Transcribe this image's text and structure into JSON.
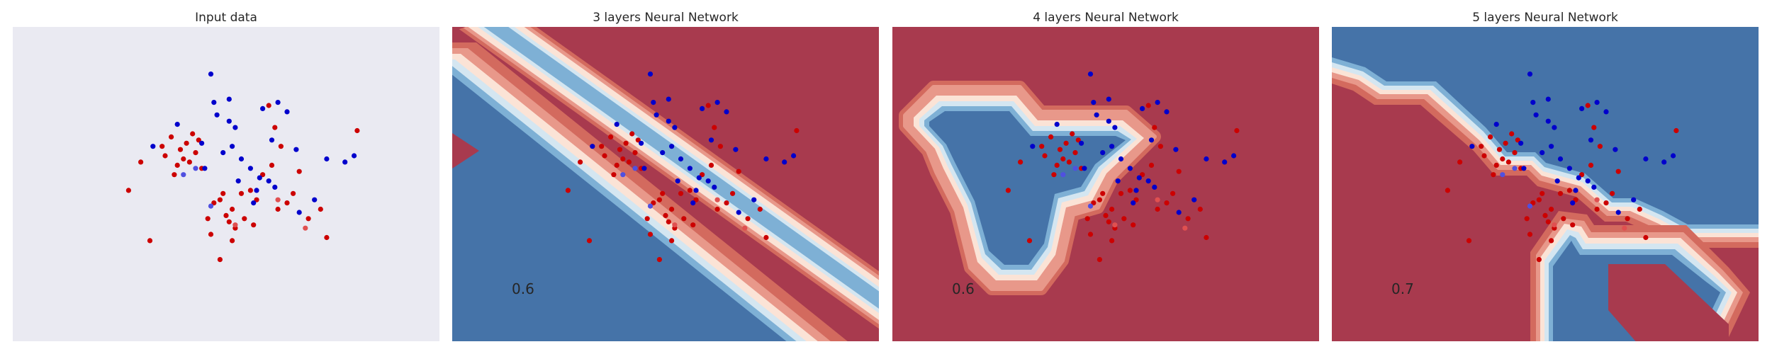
{
  "colors": {
    "page_background": "#ffffff",
    "input_panel_background": "#eaeaf2",
    "class0_point": "#cc0000",
    "class1_point": "#0000cc",
    "class0_light_point": "#e05050",
    "class1_light_point": "#5050e0",
    "class0_region": "#a83a4e",
    "class1_region": "#4573a8",
    "boundary_bands": [
      "#4573a8",
      "#7eb0d5",
      "#d4e6f1",
      "#fbe3d6",
      "#e8988a",
      "#d36a5e",
      "#a83a4e"
    ]
  },
  "chart_data": [
    {
      "type": "scatter",
      "title": "Input data",
      "score": "",
      "grid": false,
      "background": "plain",
      "series": [
        {
          "class": 0,
          "points": [
            [
              -2.1,
              1.2
            ],
            [
              -2.0,
              0.9
            ],
            [
              -1.8,
              1.5
            ],
            [
              -1.6,
              0.6
            ],
            [
              -1.5,
              1.1
            ],
            [
              -1.4,
              0.8
            ],
            [
              -1.3,
              1.3
            ],
            [
              -1.2,
              0.7
            ],
            [
              -1.1,
              1.6
            ],
            [
              -1.0,
              1.0
            ],
            [
              -0.9,
              1.4
            ],
            [
              -0.8,
              0.5
            ],
            [
              -1.7,
              0.3
            ],
            [
              -0.4,
              -0.6
            ],
            [
              -0.2,
              -0.5
            ],
            [
              0.0,
              -1.0
            ],
            [
              0.1,
              -1.2
            ],
            [
              0.2,
              -0.8
            ],
            [
              0.3,
              -1.4
            ],
            [
              0.5,
              -0.3
            ],
            [
              0.6,
              -1.1
            ],
            [
              0.8,
              -0.2
            ],
            [
              1.0,
              -0.5
            ],
            [
              1.2,
              0.3
            ],
            [
              1.5,
              0.6
            ],
            [
              1.6,
              1.8
            ],
            [
              1.7,
              -0.8
            ],
            [
              2.2,
              -0.3
            ],
            [
              2.4,
              0.4
            ],
            [
              2.7,
              -1.1
            ],
            [
              3.1,
              -0.8
            ],
            [
              3.3,
              -1.7
            ],
            [
              4.3,
              1.7
            ],
            [
              -0.5,
              -1.6
            ],
            [
              -0.2,
              -2.4
            ],
            [
              0.2,
              -1.8
            ],
            [
              -3.2,
              -0.2
            ],
            [
              -2.5,
              -1.8
            ],
            [
              -0.6,
              -1.1
            ],
            [
              0.9,
              -1.3
            ],
            [
              1.4,
              2.5
            ],
            [
              1.8,
              1.2
            ],
            [
              -2.8,
              0.7
            ],
            [
              2.0,
              -0.6
            ],
            [
              -0.1,
              -0.3
            ]
          ]
        },
        {
          "class": 1,
          "points": [
            [
              -0.5,
              3.5
            ],
            [
              -0.4,
              2.6
            ],
            [
              0.1,
              2.7
            ],
            [
              -0.3,
              2.2
            ],
            [
              1.2,
              2.4
            ],
            [
              0.3,
              1.8
            ],
            [
              0.2,
              1.2
            ],
            [
              -0.1,
              1.0
            ],
            [
              0.5,
              0.8
            ],
            [
              0.8,
              0.5
            ],
            [
              1.1,
              0.2
            ],
            [
              0.9,
              -0.6
            ],
            [
              1.4,
              0.1
            ],
            [
              1.5,
              1.4
            ],
            [
              2.0,
              2.3
            ],
            [
              2.3,
              1.1
            ],
            [
              2.9,
              -0.5
            ],
            [
              3.3,
              0.8
            ],
            [
              3.9,
              0.7
            ],
            [
              4.2,
              0.9
            ],
            [
              -2.4,
              1.2
            ],
            [
              -1.6,
              1.9
            ],
            [
              1.7,
              2.6
            ],
            [
              -0.8,
              1.3
            ],
            [
              0.4,
              0.1
            ],
            [
              1.0,
              -0.2
            ],
            [
              -0.7,
              0.5
            ],
            [
              2.4,
              -0.9
            ],
            [
              0.1,
              2.0
            ],
            [
              1.6,
              -0.1
            ]
          ]
        },
        {
          "class": 0,
          "shade": "light",
          "points": [
            [
              1.7,
              -0.5
            ],
            [
              2.6,
              -1.4
            ],
            [
              0.3,
              -1.3
            ]
          ]
        },
        {
          "class": 1,
          "shade": "light",
          "points": [
            [
              -1.4,
              0.3
            ],
            [
              -1.0,
              0.5
            ],
            [
              -0.5,
              -0.7
            ]
          ]
        }
      ]
    },
    {
      "type": "scatter",
      "title": "3 layers Neural Network",
      "score": "0.6",
      "grid": false,
      "background": "decision_regions",
      "boundary": "linear",
      "series": "same points as Input data"
    },
    {
      "type": "scatter",
      "title": "4 layers Neural Network",
      "score": "0.6",
      "grid": false,
      "background": "decision_regions",
      "boundary": "closed",
      "series": "same points as Input data"
    },
    {
      "type": "scatter",
      "title": "5 layers Neural Network",
      "score": "0.7",
      "grid": false,
      "background": "decision_regions",
      "boundary": "stepped",
      "series": "same points as Input data"
    }
  ]
}
